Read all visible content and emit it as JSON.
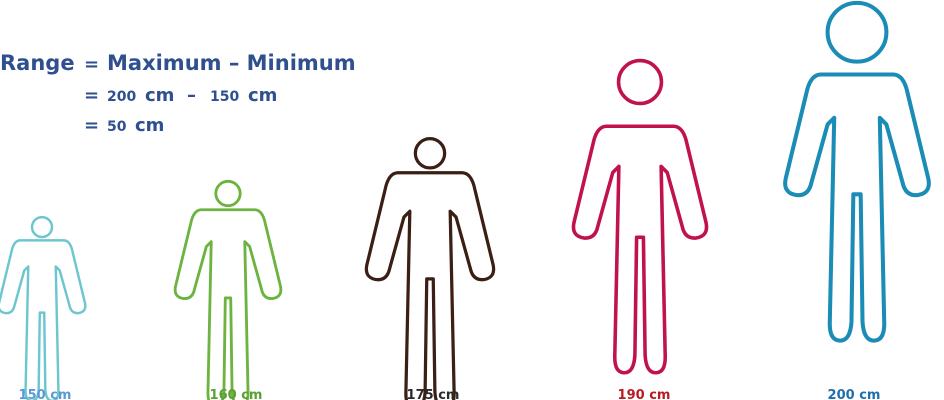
{
  "formula": {
    "lhs": "Range",
    "eq": "=",
    "line1": "Maximum – Minimum",
    "line2_a": "200",
    "line2_b": "cm",
    "line2_op": "–",
    "line2_c": "150",
    "line2_d": "cm",
    "line3_a": "50",
    "line3_b": "cm",
    "color": "#2f4f8f"
  },
  "figures": [
    {
      "label": "150 cm",
      "height_cm": 150,
      "color": "#6cc6cf",
      "label_color": "#5b9bd5"
    },
    {
      "label": "160 cm",
      "height_cm": 160,
      "color": "#6cb33f",
      "label_color": "#5aa032"
    },
    {
      "label": "175 cm",
      "height_cm": 175,
      "color": "#3b1f14",
      "label_color": "#2b2b2b"
    },
    {
      "label": "190 cm",
      "height_cm": 190,
      "color": "#c0134e",
      "label_color": "#b81c22"
    },
    {
      "label": "200 cm",
      "height_cm": 200,
      "color": "#1b8cb5",
      "label_color": "#1f6fae"
    }
  ]
}
